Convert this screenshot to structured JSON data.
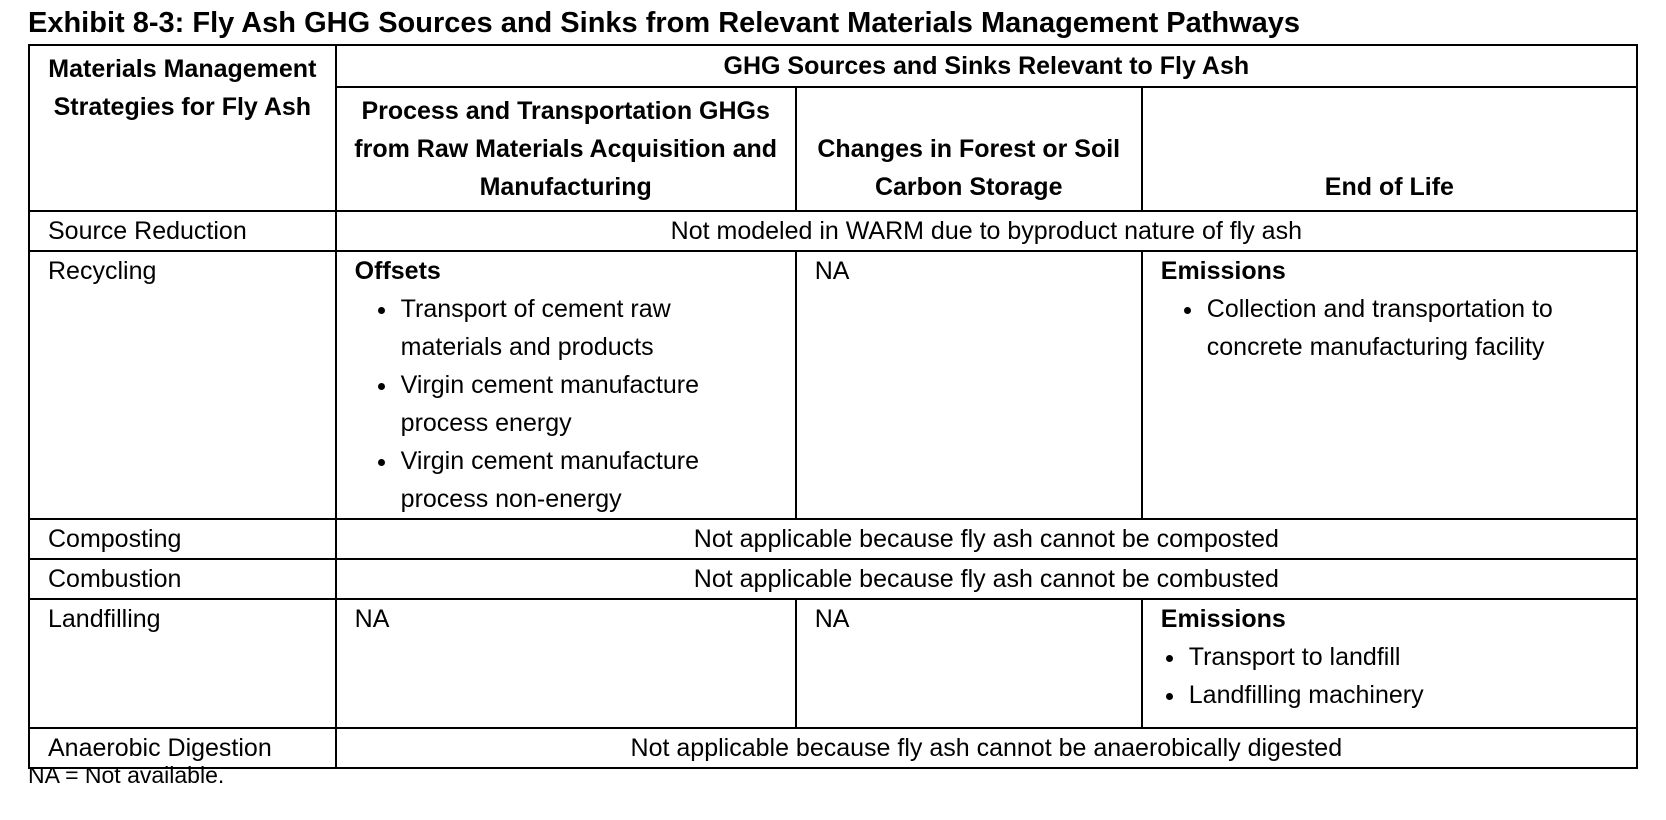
{
  "title": "Exhibit 8-3: Fly Ash GHG Sources and Sinks from Relevant Materials Management Pathways",
  "header": {
    "strategies": "Materials Management Strategies for Fly Ash",
    "group": "GHG Sources and Sinks Relevant to Fly Ash",
    "col_process": "Process and Transportation GHGs from Raw Materials Acquisition and Manufacturing",
    "col_forest": "Changes in Forest or Soil Carbon Storage",
    "col_eol": "End of Life"
  },
  "rows": {
    "source_reduction": {
      "label": "Source Reduction",
      "span": "Not modeled in WARM due to byproduct nature of fly ash"
    },
    "recycling": {
      "label": "Recycling",
      "process_heading": "Offsets",
      "process_items": [
        "Transport of cement raw materials and products",
        "Virgin cement manufacture process energy",
        "Virgin cement manufacture process non-energy"
      ],
      "forest": "NA",
      "eol_heading": "Emissions",
      "eol_items": [
        "Collection and transportation to concrete manufacturing facility"
      ]
    },
    "composting": {
      "label": "Composting",
      "span": "Not applicable because fly ash cannot be composted"
    },
    "combustion": {
      "label": "Combustion",
      "span": "Not applicable because fly ash cannot be combusted"
    },
    "landfilling": {
      "label": "Landfilling",
      "process": "NA",
      "forest": "NA",
      "eol_heading": "Emissions",
      "eol_items": [
        "Transport to landfill",
        "Landfilling machinery"
      ]
    },
    "anaerobic_digestion": {
      "label": "Anaerobic Digestion",
      "span": "Not applicable because fly ash cannot be anaerobically digested"
    }
  },
  "footnote": "NA = Not available."
}
